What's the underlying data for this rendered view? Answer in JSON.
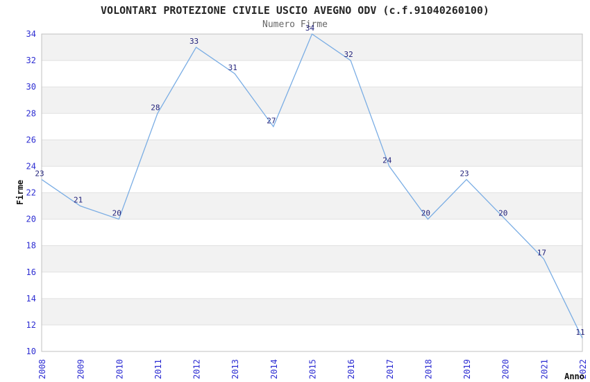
{
  "title": "VOLONTARI PROTEZIONE CIVILE USCIO AVEGNO ODV (c.f.91040260100)",
  "subtitle": "Numero Firme",
  "chart_data": {
    "type": "line",
    "title": "VOLONTARI PROTEZIONE CIVILE USCIO AVEGNO ODV (c.f.91040260100)",
    "subtitle": "Numero Firme",
    "xlabel": "Anno",
    "ylabel": "Firme",
    "categories": [
      "2008",
      "2009",
      "2010",
      "2011",
      "2012",
      "2013",
      "2014",
      "2015",
      "2016",
      "2017",
      "2018",
      "2019",
      "2020",
      "2021",
      "2022"
    ],
    "values": [
      23,
      21,
      20,
      28,
      33,
      31,
      27,
      34,
      32,
      24,
      20,
      23,
      20,
      17,
      11
    ],
    "ylim": [
      10,
      34
    ],
    "ytick_step": 2,
    "y_ticks": [
      10,
      12,
      14,
      16,
      18,
      20,
      22,
      24,
      26,
      28,
      30,
      32,
      34
    ],
    "grid": "horizontal-bands-alternating",
    "legend": "none",
    "markers": "none",
    "data_labels_visible": true,
    "x_tick_rotation_deg": -90,
    "colors": {
      "line": "#7aade4",
      "tick_label": "#2d2dd2",
      "data_label": "#1e1e78",
      "band": "#f2f2f2",
      "band_alt": "#ffffff",
      "gridline": "#e1e1e1",
      "border": "#c0c0c0",
      "title": "#262626",
      "subtitle": "#666666",
      "axis_title": "#111111",
      "background": "#ffffff"
    }
  }
}
